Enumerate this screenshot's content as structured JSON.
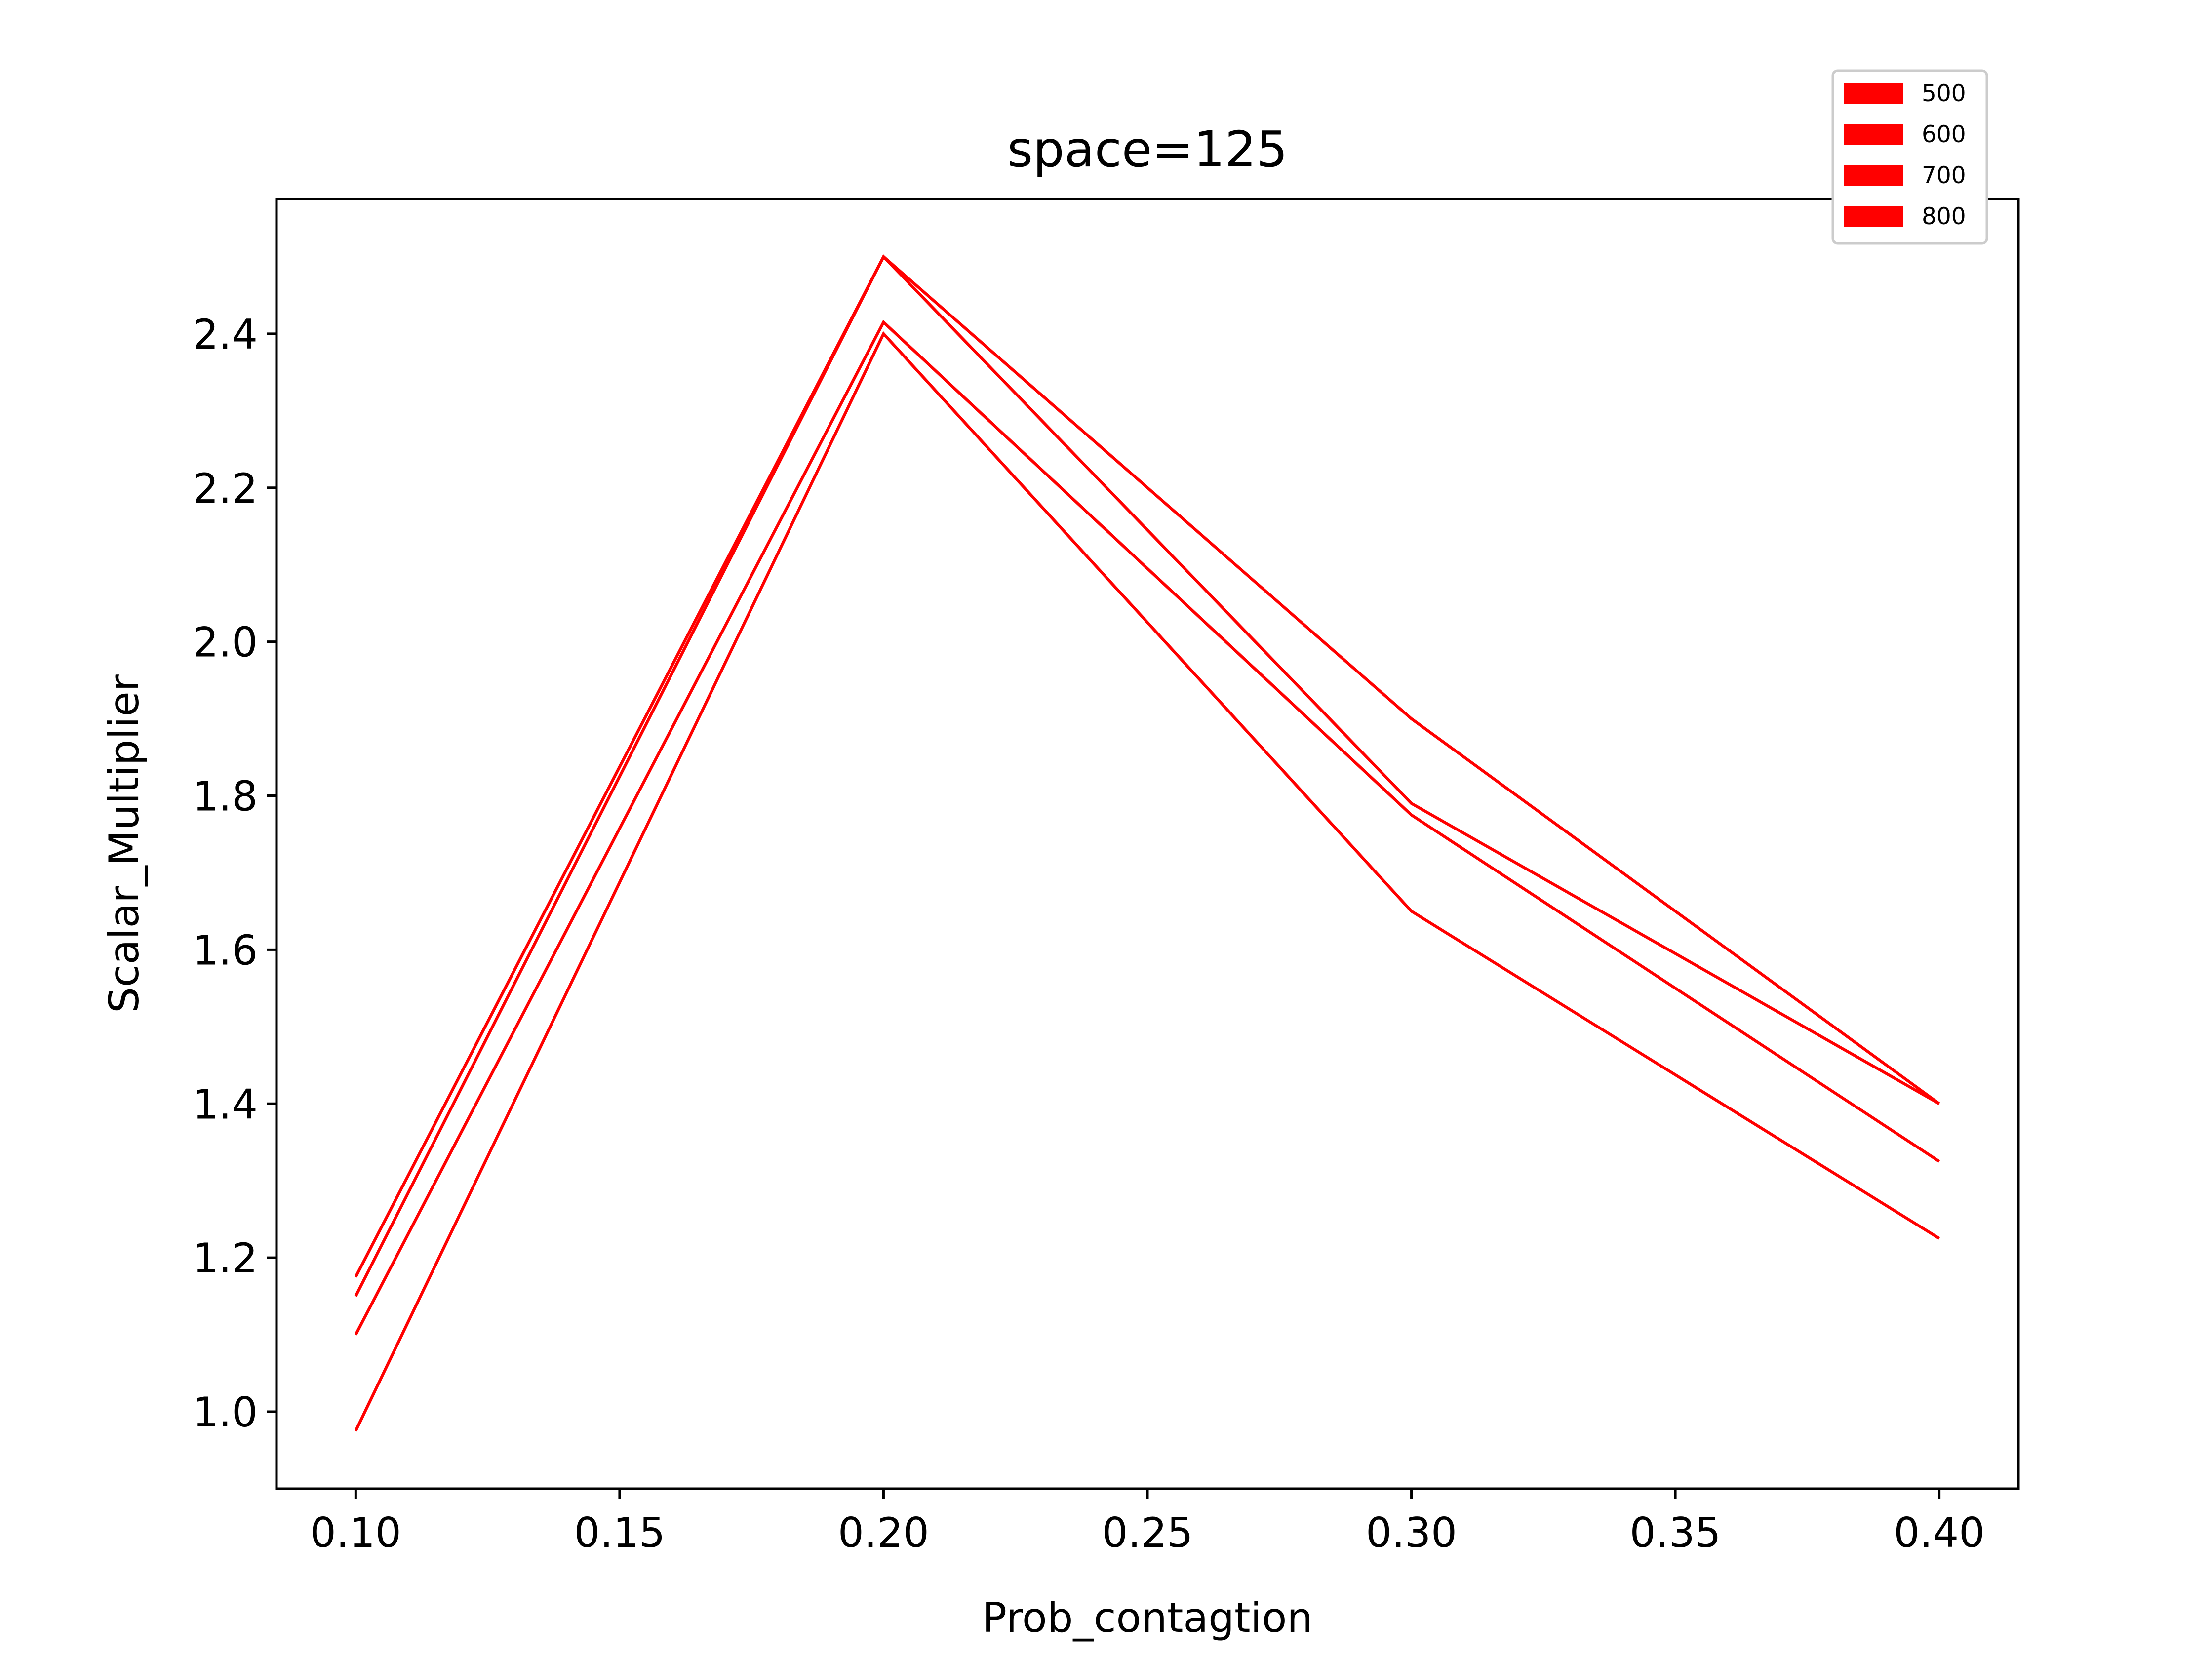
{
  "chart_data": {
    "type": "line",
    "title": "space=125",
    "xlabel": "Prob_contagtion",
    "ylabel": "Scalar_Multiplier",
    "x": [
      0.1,
      0.2,
      0.3,
      0.4
    ],
    "xlim": [
      0.085,
      0.415
    ],
    "ylim": [
      0.9,
      2.575
    ],
    "xticks": [
      "0.10",
      "0.15",
      "0.20",
      "0.25",
      "0.30",
      "0.35",
      "0.40"
    ],
    "yticks": [
      "1.0",
      "1.2",
      "1.4",
      "1.6",
      "1.8",
      "2.0",
      "2.2",
      "2.4"
    ],
    "grid": false,
    "legend_position": "top-right",
    "series": [
      {
        "name": "500",
        "color": "#ff0000",
        "values": [
          1.175,
          2.5,
          1.9,
          1.4
        ]
      },
      {
        "name": "600",
        "color": "#ff0000",
        "values": [
          1.15,
          2.5,
          1.79,
          1.4
        ]
      },
      {
        "name": "700",
        "color": "#ff0000",
        "values": [
          1.1,
          2.415,
          1.775,
          1.325
        ]
      },
      {
        "name": "800",
        "color": "#ff0000",
        "values": [
          0.975,
          2.4,
          1.65,
          1.225
        ]
      }
    ]
  }
}
